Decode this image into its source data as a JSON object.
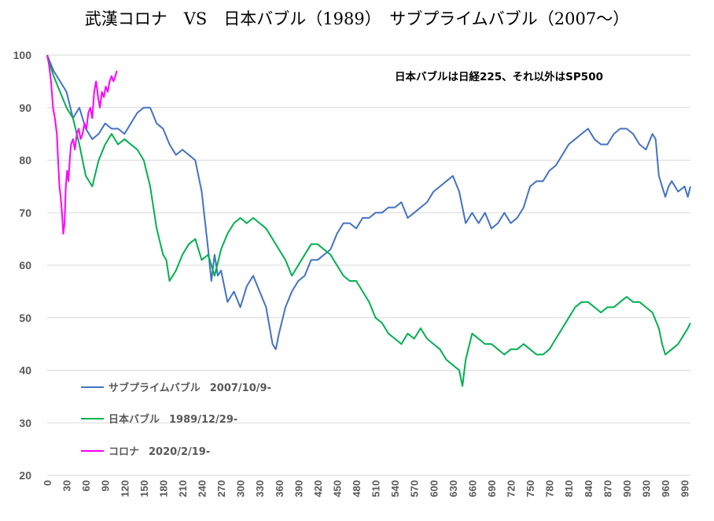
{
  "chart_data": {
    "type": "line",
    "title": "武漢コロナ　VS　日本バブル（1989）　サブプライムバブル（2007～）",
    "annotation": "日本バブルは日経225、それ以外はSP500",
    "xlim": [
      0,
      999
    ],
    "ylim": [
      20,
      100
    ],
    "y_ticks": [
      "20",
      "30",
      "40",
      "50",
      "60",
      "70",
      "80",
      "90",
      "100"
    ],
    "x_ticks": [
      "0",
      "30",
      "60",
      "90",
      "120",
      "150",
      "180",
      "210",
      "240",
      "270",
      "300",
      "330",
      "360",
      "390",
      "420",
      "450",
      "480",
      "510",
      "540",
      "570",
      "600",
      "630",
      "660",
      "690",
      "720",
      "750",
      "780",
      "810",
      "840",
      "870",
      "900",
      "930",
      "960",
      "990"
    ],
    "grid": "horizontal",
    "legend_position": "bottom-left",
    "series": [
      {
        "name": "サブプライムバブル",
        "start_label": "2007/10/9-",
        "color": "#4472c4",
        "x": [
          0,
          10,
          20,
          30,
          40,
          50,
          60,
          70,
          80,
          90,
          100,
          110,
          120,
          130,
          140,
          150,
          160,
          170,
          180,
          190,
          200,
          210,
          220,
          230,
          240,
          250,
          255,
          260,
          265,
          270,
          280,
          290,
          300,
          310,
          320,
          330,
          340,
          350,
          355,
          360,
          370,
          380,
          390,
          400,
          410,
          420,
          430,
          440,
          450,
          460,
          470,
          480,
          490,
          500,
          510,
          520,
          530,
          540,
          550,
          560,
          570,
          580,
          590,
          600,
          610,
          620,
          630,
          640,
          650,
          660,
          670,
          680,
          690,
          700,
          710,
          720,
          730,
          740,
          750,
          760,
          770,
          780,
          790,
          800,
          810,
          820,
          830,
          840,
          850,
          860,
          870,
          880,
          890,
          900,
          910,
          920,
          930,
          940,
          945,
          950,
          960,
          965,
          970,
          980,
          990,
          995,
          999
        ],
        "y": [
          100,
          97,
          95,
          93,
          88,
          90,
          86,
          84,
          85,
          87,
          86,
          86,
          85,
          87,
          89,
          90,
          90,
          87,
          86,
          83,
          81,
          82,
          81,
          80,
          74,
          63,
          57,
          62,
          58,
          59,
          53,
          55,
          52,
          56,
          58,
          55,
          52,
          45,
          44,
          47,
          52,
          55,
          57,
          58,
          61,
          61,
          62,
          63,
          66,
          68,
          68,
          67,
          69,
          69,
          70,
          70,
          71,
          71,
          72,
          69,
          70,
          71,
          72,
          74,
          75,
          76,
          77,
          74,
          68,
          70,
          68,
          70,
          67,
          68,
          70,
          68,
          69,
          71,
          75,
          76,
          76,
          78,
          79,
          81,
          83,
          84,
          85,
          86,
          84,
          83,
          83,
          85,
          86,
          86,
          85,
          83,
          82,
          85,
          84,
          77,
          73,
          75,
          76,
          74,
          75,
          73,
          75
        ]
      },
      {
        "name": "日本バブル",
        "start_label": "1989/12/29-",
        "color": "#00b050",
        "x": [
          0,
          10,
          20,
          30,
          40,
          50,
          60,
          70,
          80,
          90,
          100,
          110,
          120,
          130,
          140,
          150,
          160,
          170,
          180,
          185,
          190,
          200,
          210,
          220,
          230,
          240,
          250,
          260,
          270,
          280,
          290,
          300,
          310,
          320,
          330,
          340,
          350,
          360,
          370,
          380,
          390,
          400,
          410,
          420,
          430,
          440,
          450,
          460,
          470,
          480,
          490,
          500,
          510,
          520,
          530,
          540,
          550,
          560,
          570,
          580,
          590,
          600,
          610,
          620,
          630,
          640,
          645,
          650,
          660,
          670,
          680,
          690,
          700,
          710,
          720,
          730,
          740,
          750,
          760,
          770,
          780,
          790,
          800,
          810,
          820,
          830,
          840,
          850,
          860,
          870,
          880,
          890,
          900,
          910,
          920,
          930,
          940,
          950,
          955,
          960,
          970,
          980,
          990,
          995,
          999
        ],
        "y": [
          100,
          96,
          93,
          90,
          88,
          83,
          77,
          75,
          80,
          83,
          85,
          83,
          84,
          83,
          82,
          80,
          75,
          67,
          62,
          61,
          57,
          59,
          62,
          64,
          65,
          61,
          62,
          58,
          63,
          66,
          68,
          69,
          68,
          69,
          68,
          67,
          65,
          63,
          61,
          58,
          60,
          62,
          64,
          64,
          63,
          62,
          60,
          58,
          57,
          57,
          55,
          53,
          50,
          49,
          47,
          46,
          45,
          47,
          46,
          48,
          46,
          45,
          44,
          42,
          41,
          40,
          37,
          42,
          47,
          46,
          45,
          45,
          44,
          43,
          44,
          44,
          45,
          44,
          43,
          43,
          44,
          46,
          48,
          50,
          52,
          53,
          53,
          52,
          51,
          52,
          52,
          53,
          54,
          53,
          53,
          52,
          51,
          48,
          45,
          43,
          44,
          45,
          47,
          48,
          49
        ]
      },
      {
        "name": "コロナ",
        "start_label": "2020/2/19-",
        "color": "#ff00ff",
        "x": [
          0,
          3,
          6,
          9,
          12,
          15,
          17,
          19,
          21,
          23,
          25,
          27,
          29,
          31,
          33,
          35,
          37,
          40,
          43,
          46,
          49,
          52,
          55,
          58,
          61,
          64,
          67,
          70,
          73,
          76,
          79,
          82,
          85,
          88,
          91,
          94,
          97,
          100,
          103,
          106,
          108
        ],
        "y": [
          100,
          98,
          95,
          90,
          88,
          85,
          80,
          75,
          73,
          70,
          66,
          68,
          75,
          78,
          76,
          80,
          83,
          84,
          82,
          85,
          86,
          84,
          85,
          87,
          86,
          89,
          90,
          88,
          93,
          95,
          92,
          90,
          93,
          92,
          94,
          93,
          95,
          96,
          95,
          96,
          97
        ]
      }
    ]
  }
}
